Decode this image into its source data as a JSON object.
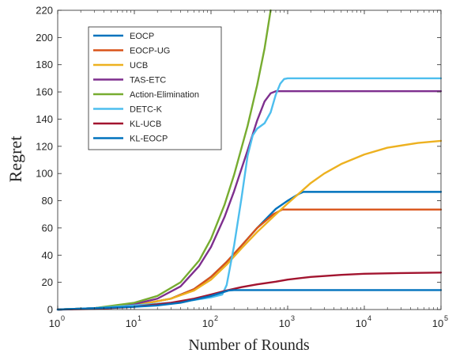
{
  "chart_data": {
    "type": "line",
    "title": "",
    "xlabel": "Number of Rounds",
    "ylabel": "Regret",
    "xscale": "log",
    "xlim": [
      1,
      100000
    ],
    "ylim": [
      0,
      220
    ],
    "x_ticks": [
      {
        "base": "10",
        "exp": "0"
      },
      {
        "base": "10",
        "exp": "1"
      },
      {
        "base": "10",
        "exp": "2"
      },
      {
        "base": "10",
        "exp": "3"
      },
      {
        "base": "10",
        "exp": "4"
      },
      {
        "base": "10",
        "exp": "5"
      }
    ],
    "y_ticks": [
      "0",
      "20",
      "40",
      "60",
      "80",
      "100",
      "120",
      "140",
      "160",
      "180",
      "200",
      "220"
    ],
    "grid": false,
    "legend_position": "top-left",
    "series": [
      {
        "name": "EOCP",
        "color": "#0072BD",
        "x": [
          1,
          3,
          10,
          30,
          60,
          100,
          160,
          250,
          400,
          700,
          1000,
          1400,
          1600,
          2000,
          5000,
          10000,
          100000
        ],
        "y": [
          0,
          1,
          3,
          8,
          15,
          24,
          35,
          47,
          60,
          74,
          80,
          85,
          86.5,
          86.5,
          86.5,
          86.5,
          86.5
        ]
      },
      {
        "name": "EOCP-UG",
        "color": "#D95319",
        "x": [
          1,
          3,
          10,
          30,
          60,
          100,
          160,
          250,
          400,
          650,
          850,
          1000,
          2000,
          10000,
          100000
        ],
        "y": [
          0,
          1,
          3,
          8,
          15,
          24,
          35,
          47,
          60,
          70,
          73.5,
          73.5,
          73.5,
          73.5,
          73.5
        ]
      },
      {
        "name": "UCB",
        "color": "#EDB120",
        "x": [
          1,
          3,
          10,
          30,
          60,
          100,
          160,
          250,
          400,
          700,
          1000,
          2000,
          3000,
          5000,
          10000,
          20000,
          50000,
          100000
        ],
        "y": [
          0,
          1,
          3,
          8,
          14,
          22,
          33,
          45,
          57,
          70,
          78,
          93,
          100,
          107,
          114,
          119,
          122.5,
          124
        ]
      },
      {
        "name": "TAS-ETC",
        "color": "#7E2F8E",
        "x": [
          1,
          3,
          10,
          20,
          40,
          70,
          100,
          150,
          200,
          300,
          400,
          500,
          600,
          700,
          1000,
          10000,
          100000
        ],
        "y": [
          0,
          1,
          4,
          8,
          17,
          32,
          46,
          68,
          87,
          117,
          139,
          153,
          159,
          160.5,
          160.5,
          160.5,
          160.5
        ]
      },
      {
        "name": "Action-Elimination",
        "color": "#77AC30",
        "x": [
          1,
          3,
          10,
          20,
          40,
          70,
          100,
          150,
          200,
          300,
          400,
          500,
          600
        ],
        "y": [
          0,
          1,
          5,
          10,
          20,
          36,
          52,
          77,
          99,
          135,
          165,
          192,
          220
        ]
      },
      {
        "name": "DETC-K",
        "color": "#4DBEEE",
        "x": [
          1,
          3,
          10,
          30,
          60,
          100,
          140,
          160,
          200,
          250,
          300,
          350,
          400,
          500,
          600,
          700,
          800,
          900,
          1000,
          10000,
          100000
        ],
        "y": [
          0,
          1,
          3,
          5,
          7,
          9,
          11,
          18,
          47,
          82,
          113,
          128,
          133,
          137,
          145,
          158,
          166,
          169.5,
          170,
          170,
          170
        ]
      },
      {
        "name": "KL-UCB",
        "color": "#A2142F",
        "x": [
          1,
          3,
          10,
          30,
          60,
          100,
          160,
          250,
          400,
          700,
          1000,
          2000,
          5000,
          10000,
          30000,
          100000
        ],
        "y": [
          0,
          0.5,
          2,
          5,
          8,
          11,
          14,
          16.5,
          18.5,
          20.5,
          22,
          24,
          25.5,
          26.3,
          26.8,
          27.2
        ]
      },
      {
        "name": "KL-EOCP",
        "color": "#0072BD",
        "x": [
          1,
          3,
          10,
          20,
          40,
          70,
          100,
          140,
          170,
          200,
          1000,
          10000,
          100000
        ],
        "y": [
          0,
          1,
          2,
          3,
          5,
          8,
          10,
          12.5,
          14,
          14.3,
          14.3,
          14.3,
          14.3
        ]
      }
    ]
  }
}
